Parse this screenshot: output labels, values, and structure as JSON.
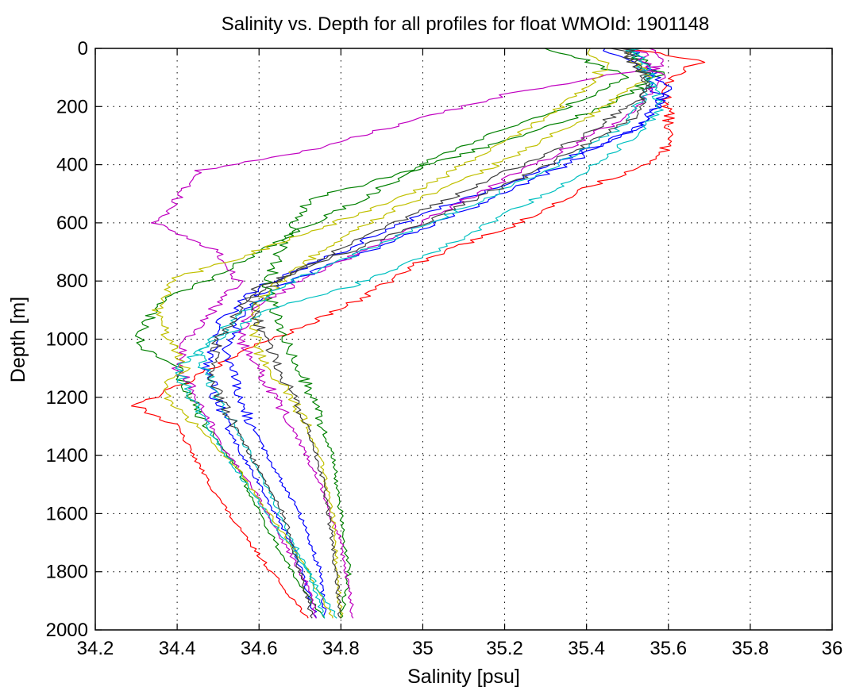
{
  "chart_data": {
    "type": "line",
    "title": "Salinity vs. Depth for all profiles for float WMOId: 1901148",
    "xlabel": "Salinity [psu]",
    "ylabel": "Depth [m]",
    "xlim": [
      34.2,
      36
    ],
    "ylim": [
      0,
      2000
    ],
    "y_reversed": true,
    "grid": true,
    "grid_style": "dotted",
    "x_ticks": [
      34.2,
      34.4,
      34.6,
      34.8,
      35,
      35.2,
      35.4,
      35.6,
      35.8,
      36
    ],
    "x_tick_labels": [
      "34.2",
      "34.4",
      "34.6",
      "34.8",
      "35",
      "35.2",
      "35.4",
      "35.6",
      "35.8",
      "36"
    ],
    "y_ticks": [
      0,
      200,
      400,
      600,
      800,
      1000,
      1200,
      1400,
      1600,
      1800,
      2000
    ],
    "y_tick_labels": [
      "0",
      "200",
      "400",
      "600",
      "800",
      "1000",
      "1200",
      "1400",
      "1600",
      "1800",
      "2000"
    ],
    "series": [
      {
        "color": "#ff0000",
        "points": [
          [
            35.5,
            0
          ],
          [
            35.68,
            40
          ],
          [
            35.59,
            120
          ],
          [
            35.6,
            200
          ],
          [
            35.6,
            320
          ],
          [
            35.58,
            380
          ],
          [
            35.4,
            480
          ],
          [
            35.2,
            620
          ],
          [
            35.0,
            730
          ],
          [
            34.85,
            860
          ],
          [
            34.7,
            960
          ],
          [
            34.55,
            1050
          ],
          [
            34.35,
            1200
          ],
          [
            34.3,
            1230
          ],
          [
            34.4,
            1300
          ],
          [
            34.48,
            1500
          ],
          [
            34.55,
            1650
          ],
          [
            34.63,
            1800
          ],
          [
            34.72,
            1960
          ]
        ]
      },
      {
        "color": "#0000ff",
        "points": [
          [
            35.5,
            0
          ],
          [
            35.55,
            60
          ],
          [
            35.6,
            140
          ],
          [
            35.55,
            250
          ],
          [
            35.35,
            400
          ],
          [
            35.1,
            560
          ],
          [
            34.9,
            680
          ],
          [
            34.75,
            760
          ],
          [
            34.6,
            850
          ],
          [
            34.55,
            950
          ],
          [
            34.52,
            1050
          ],
          [
            34.55,
            1200
          ],
          [
            34.62,
            1400
          ],
          [
            34.7,
            1600
          ],
          [
            34.75,
            1800
          ],
          [
            34.76,
            1960
          ]
        ]
      },
      {
        "color": "#0000ff",
        "points": [
          [
            35.45,
            0
          ],
          [
            35.55,
            80
          ],
          [
            35.58,
            180
          ],
          [
            35.52,
            280
          ],
          [
            35.25,
            440
          ],
          [
            34.95,
            600
          ],
          [
            34.8,
            700
          ],
          [
            34.6,
            820
          ],
          [
            34.5,
            950
          ],
          [
            34.47,
            1100
          ],
          [
            34.52,
            1300
          ],
          [
            34.6,
            1500
          ],
          [
            34.68,
            1700
          ],
          [
            34.74,
            1960
          ]
        ]
      },
      {
        "color": "#008000",
        "points": [
          [
            35.3,
            0
          ],
          [
            35.4,
            40
          ],
          [
            35.5,
            100
          ],
          [
            35.35,
            200
          ],
          [
            35.05,
            360
          ],
          [
            34.85,
            520
          ],
          [
            34.65,
            660
          ],
          [
            34.5,
            780
          ],
          [
            34.35,
            880
          ],
          [
            34.3,
            1020
          ],
          [
            34.4,
            1100
          ],
          [
            34.45,
            1250
          ],
          [
            34.55,
            1450
          ],
          [
            34.62,
            1650
          ],
          [
            34.7,
            1850
          ],
          [
            34.76,
            1960
          ]
        ]
      },
      {
        "color": "#008000",
        "points": [
          [
            35.5,
            0
          ],
          [
            35.58,
            90
          ],
          [
            35.45,
            200
          ],
          [
            35.15,
            340
          ],
          [
            34.9,
            450
          ],
          [
            34.72,
            520
          ],
          [
            34.65,
            700
          ],
          [
            34.62,
            820
          ],
          [
            34.65,
            960
          ],
          [
            34.68,
            1050
          ],
          [
            34.73,
            1200
          ],
          [
            34.78,
            1400
          ],
          [
            34.8,
            1600
          ],
          [
            34.82,
            1800
          ],
          [
            34.8,
            1960
          ]
        ]
      },
      {
        "color": "#c000c0",
        "points": [
          [
            35.55,
            0
          ],
          [
            35.58,
            60
          ],
          [
            35.2,
            160
          ],
          [
            34.95,
            260
          ],
          [
            34.7,
            360
          ],
          [
            34.45,
            420
          ],
          [
            34.4,
            520
          ],
          [
            34.35,
            600
          ],
          [
            34.5,
            700
          ],
          [
            34.55,
            800
          ],
          [
            34.5,
            880
          ],
          [
            34.42,
            1000
          ],
          [
            34.4,
            1100
          ],
          [
            34.45,
            1200
          ],
          [
            34.5,
            1350
          ],
          [
            34.58,
            1500
          ],
          [
            34.66,
            1700
          ],
          [
            34.72,
            1850
          ],
          [
            34.74,
            1960
          ]
        ]
      },
      {
        "color": "#c000c0",
        "points": [
          [
            35.52,
            0
          ],
          [
            35.58,
            100
          ],
          [
            35.52,
            220
          ],
          [
            35.3,
            380
          ],
          [
            35.05,
            560
          ],
          [
            34.85,
            700
          ],
          [
            34.7,
            800
          ],
          [
            34.58,
            900
          ],
          [
            34.55,
            1000
          ],
          [
            34.6,
            1100
          ],
          [
            34.68,
            1300
          ],
          [
            34.75,
            1500
          ],
          [
            34.8,
            1700
          ],
          [
            34.83,
            1960
          ]
        ]
      },
      {
        "color": "#c0c000",
        "points": [
          [
            35.4,
            0
          ],
          [
            35.45,
            50
          ],
          [
            35.4,
            140
          ],
          [
            35.25,
            280
          ],
          [
            35.0,
            480
          ],
          [
            34.75,
            620
          ],
          [
            34.55,
            720
          ],
          [
            34.4,
            790
          ],
          [
            34.35,
            900
          ],
          [
            34.38,
            1000
          ],
          [
            34.42,
            1100
          ],
          [
            34.36,
            1180
          ],
          [
            34.45,
            1300
          ],
          [
            34.55,
            1450
          ],
          [
            34.65,
            1650
          ],
          [
            34.72,
            1800
          ],
          [
            34.78,
            1960
          ]
        ]
      },
      {
        "color": "#c0c000",
        "points": [
          [
            35.5,
            0
          ],
          [
            35.55,
            100
          ],
          [
            35.4,
            240
          ],
          [
            35.15,
            420
          ],
          [
            34.92,
            560
          ],
          [
            34.75,
            700
          ],
          [
            34.65,
            800
          ],
          [
            34.58,
            900
          ],
          [
            34.6,
            1050
          ],
          [
            34.68,
            1200
          ],
          [
            34.75,
            1400
          ],
          [
            34.78,
            1600
          ],
          [
            34.8,
            1960
          ]
        ]
      },
      {
        "color": "#00c0c0",
        "points": [
          [
            35.52,
            0
          ],
          [
            35.55,
            80
          ],
          [
            35.58,
            220
          ],
          [
            35.45,
            380
          ],
          [
            35.22,
            560
          ],
          [
            35.0,
            720
          ],
          [
            34.82,
            820
          ],
          [
            34.62,
            900
          ],
          [
            34.5,
            1000
          ],
          [
            34.4,
            1100
          ],
          [
            34.45,
            1250
          ],
          [
            34.52,
            1400
          ],
          [
            34.62,
            1600
          ],
          [
            34.72,
            1800
          ],
          [
            34.79,
            1960
          ]
        ]
      },
      {
        "color": "#00c0c0",
        "points": [
          [
            35.5,
            0
          ],
          [
            35.56,
            120
          ],
          [
            35.5,
            260
          ],
          [
            35.3,
            420
          ],
          [
            35.05,
            580
          ],
          [
            34.85,
            700
          ],
          [
            34.65,
            820
          ],
          [
            34.55,
            920
          ],
          [
            34.45,
            1050
          ],
          [
            34.5,
            1200
          ],
          [
            34.58,
            1400
          ],
          [
            34.65,
            1600
          ],
          [
            34.72,
            1800
          ],
          [
            34.76,
            1960
          ]
        ]
      },
      {
        "color": "#404040",
        "points": [
          [
            35.48,
            0
          ],
          [
            35.55,
            100
          ],
          [
            35.52,
            240
          ],
          [
            35.28,
            420
          ],
          [
            35.0,
            600
          ],
          [
            34.78,
            720
          ],
          [
            34.6,
            820
          ],
          [
            34.55,
            900
          ],
          [
            34.5,
            1000
          ],
          [
            34.48,
            1100
          ],
          [
            34.52,
            1250
          ],
          [
            34.58,
            1400
          ],
          [
            34.66,
            1600
          ],
          [
            34.7,
            1800
          ],
          [
            34.73,
            1960
          ]
        ]
      },
      {
        "color": "#404040",
        "points": [
          [
            35.5,
            0
          ],
          [
            35.55,
            150
          ],
          [
            35.4,
            300
          ],
          [
            35.15,
            460
          ],
          [
            34.9,
            620
          ],
          [
            34.7,
            760
          ],
          [
            34.58,
            860
          ],
          [
            34.6,
            960
          ],
          [
            34.65,
            1100
          ],
          [
            34.72,
            1300
          ],
          [
            34.76,
            1500
          ],
          [
            34.78,
            1700
          ],
          [
            34.8,
            1960
          ]
        ]
      }
    ]
  }
}
